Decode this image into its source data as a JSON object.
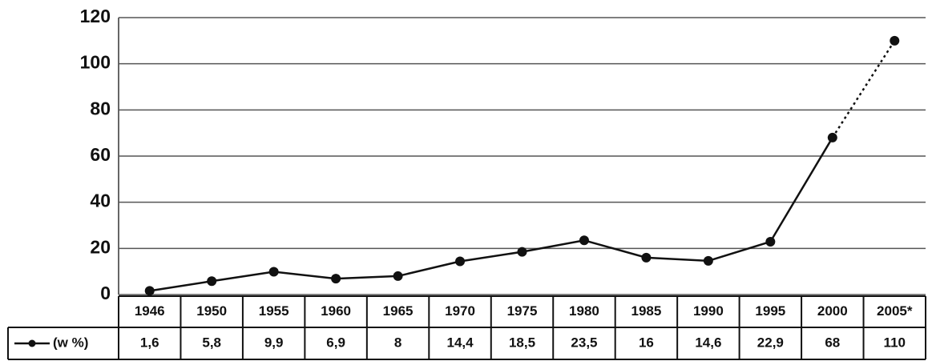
{
  "chart_data": {
    "type": "line",
    "categories": [
      "1946",
      "1950",
      "1955",
      "1960",
      "1965",
      "1970",
      "1975",
      "1980",
      "1985",
      "1990",
      "1995",
      "2000",
      "2005*"
    ],
    "series": [
      {
        "name": "(w %)",
        "color": "#111111",
        "values": [
          1.6,
          5.8,
          9.9,
          6.9,
          8,
          14.4,
          18.5,
          23.5,
          16,
          14.6,
          22.9,
          68,
          110
        ],
        "value_labels": [
          "1,6",
          "5,8",
          "9,9",
          "6,9",
          "8",
          "14,4",
          "18,5",
          "23,5",
          "16",
          "14,6",
          "22,9",
          "68",
          "110"
        ]
      }
    ],
    "ylim": [
      0,
      120
    ],
    "yticks": [
      0,
      20,
      40,
      60,
      80,
      100,
      120
    ],
    "grid": true,
    "dotted_last_segment": true
  }
}
